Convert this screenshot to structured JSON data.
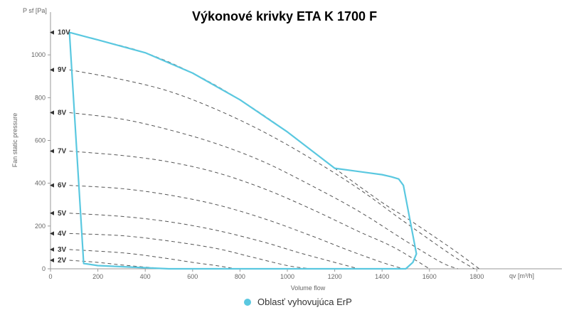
{
  "chart_data": {
    "type": "line",
    "title": "Výkonové krivky ETA K 1700  F",
    "xlabel": "Volume flow",
    "ylabel": "Fan static pressure",
    "x_axis_title": "qv [m³/h]",
    "y_axis_title": "P sf [Pa]",
    "xlim": [
      0,
      2000
    ],
    "ylim": [
      0,
      1200
    ],
    "x_ticks": [
      0,
      200,
      400,
      600,
      800,
      1000,
      1200,
      1400,
      1600,
      1800
    ],
    "y_ticks": [
      0,
      200,
      400,
      600,
      800,
      1000
    ],
    "grid": false,
    "series": [
      {
        "name": "10V",
        "style": "dashed",
        "color": "#555555",
        "x": [
          80,
          200,
          400,
          600,
          800,
          1000,
          1200,
          1400,
          1500,
          1700,
          1810
        ],
        "y": [
          1105,
          1070,
          1010,
          915,
          790,
          640,
          470,
          310,
          240,
          90,
          0
        ]
      },
      {
        "name": "9V",
        "style": "dashed",
        "color": "#555555",
        "x": [
          80,
          300,
          500,
          700,
          900,
          1100,
          1300,
          1500,
          1700,
          1790
        ],
        "y": [
          930,
          885,
          830,
          745,
          640,
          515,
          375,
          215,
          60,
          0
        ]
      },
      {
        "name": "8V",
        "style": "dashed",
        "color": "#555555",
        "x": [
          80,
          300,
          500,
          700,
          900,
          1100,
          1300,
          1500,
          1650,
          1720
        ],
        "y": [
          730,
          700,
          650,
          585,
          500,
          390,
          270,
          130,
          30,
          0
        ]
      },
      {
        "name": "7V",
        "style": "dashed",
        "color": "#555555",
        "x": [
          80,
          300,
          500,
          700,
          900,
          1100,
          1300,
          1450,
          1600
        ],
        "y": [
          550,
          530,
          500,
          450,
          375,
          280,
          175,
          100,
          0
        ]
      },
      {
        "name": "6V",
        "style": "dashed",
        "color": "#555555",
        "x": [
          80,
          300,
          500,
          700,
          900,
          1100,
          1250,
          1400,
          1490
        ],
        "y": [
          390,
          375,
          345,
          300,
          235,
          155,
          90,
          30,
          0
        ]
      },
      {
        "name": "5V",
        "style": "dashed",
        "color": "#555555",
        "x": [
          80,
          300,
          500,
          700,
          900,
          1050,
          1200,
          1300
        ],
        "y": [
          260,
          245,
          220,
          180,
          125,
          75,
          30,
          0
        ]
      },
      {
        "name": "4V",
        "style": "dashed",
        "color": "#555555",
        "x": [
          80,
          300,
          500,
          700,
          850,
          1000,
          1100
        ],
        "y": [
          165,
          155,
          130,
          95,
          55,
          15,
          0
        ]
      },
      {
        "name": "3V",
        "style": "dashed",
        "color": "#555555",
        "x": [
          80,
          300,
          450,
          600,
          700,
          780
        ],
        "y": [
          90,
          75,
          55,
          30,
          15,
          0
        ]
      },
      {
        "name": "2V",
        "style": "dashed",
        "color": "#555555",
        "x": [
          80,
          200,
          300,
          400,
          500
        ],
        "y": [
          40,
          30,
          18,
          8,
          0
        ]
      },
      {
        "name": "Oblasť vyhovujúca ErP",
        "style": "solid",
        "color": "#5ac8e0",
        "x": [
          80,
          200,
          400,
          600,
          800,
          1000,
          1200,
          1400,
          1440,
          1470,
          1490,
          1545,
          1530,
          1500,
          1000,
          500,
          200,
          140,
          80
        ],
        "y": [
          1105,
          1070,
          1010,
          915,
          790,
          640,
          470,
          440,
          430,
          420,
          390,
          70,
          30,
          0,
          0,
          0,
          15,
          25,
          1105
        ]
      }
    ],
    "legend": {
      "placement": "bottom-center",
      "label": "Oblasť vyhovujúca ErP",
      "color": "#5ac8e0"
    }
  }
}
